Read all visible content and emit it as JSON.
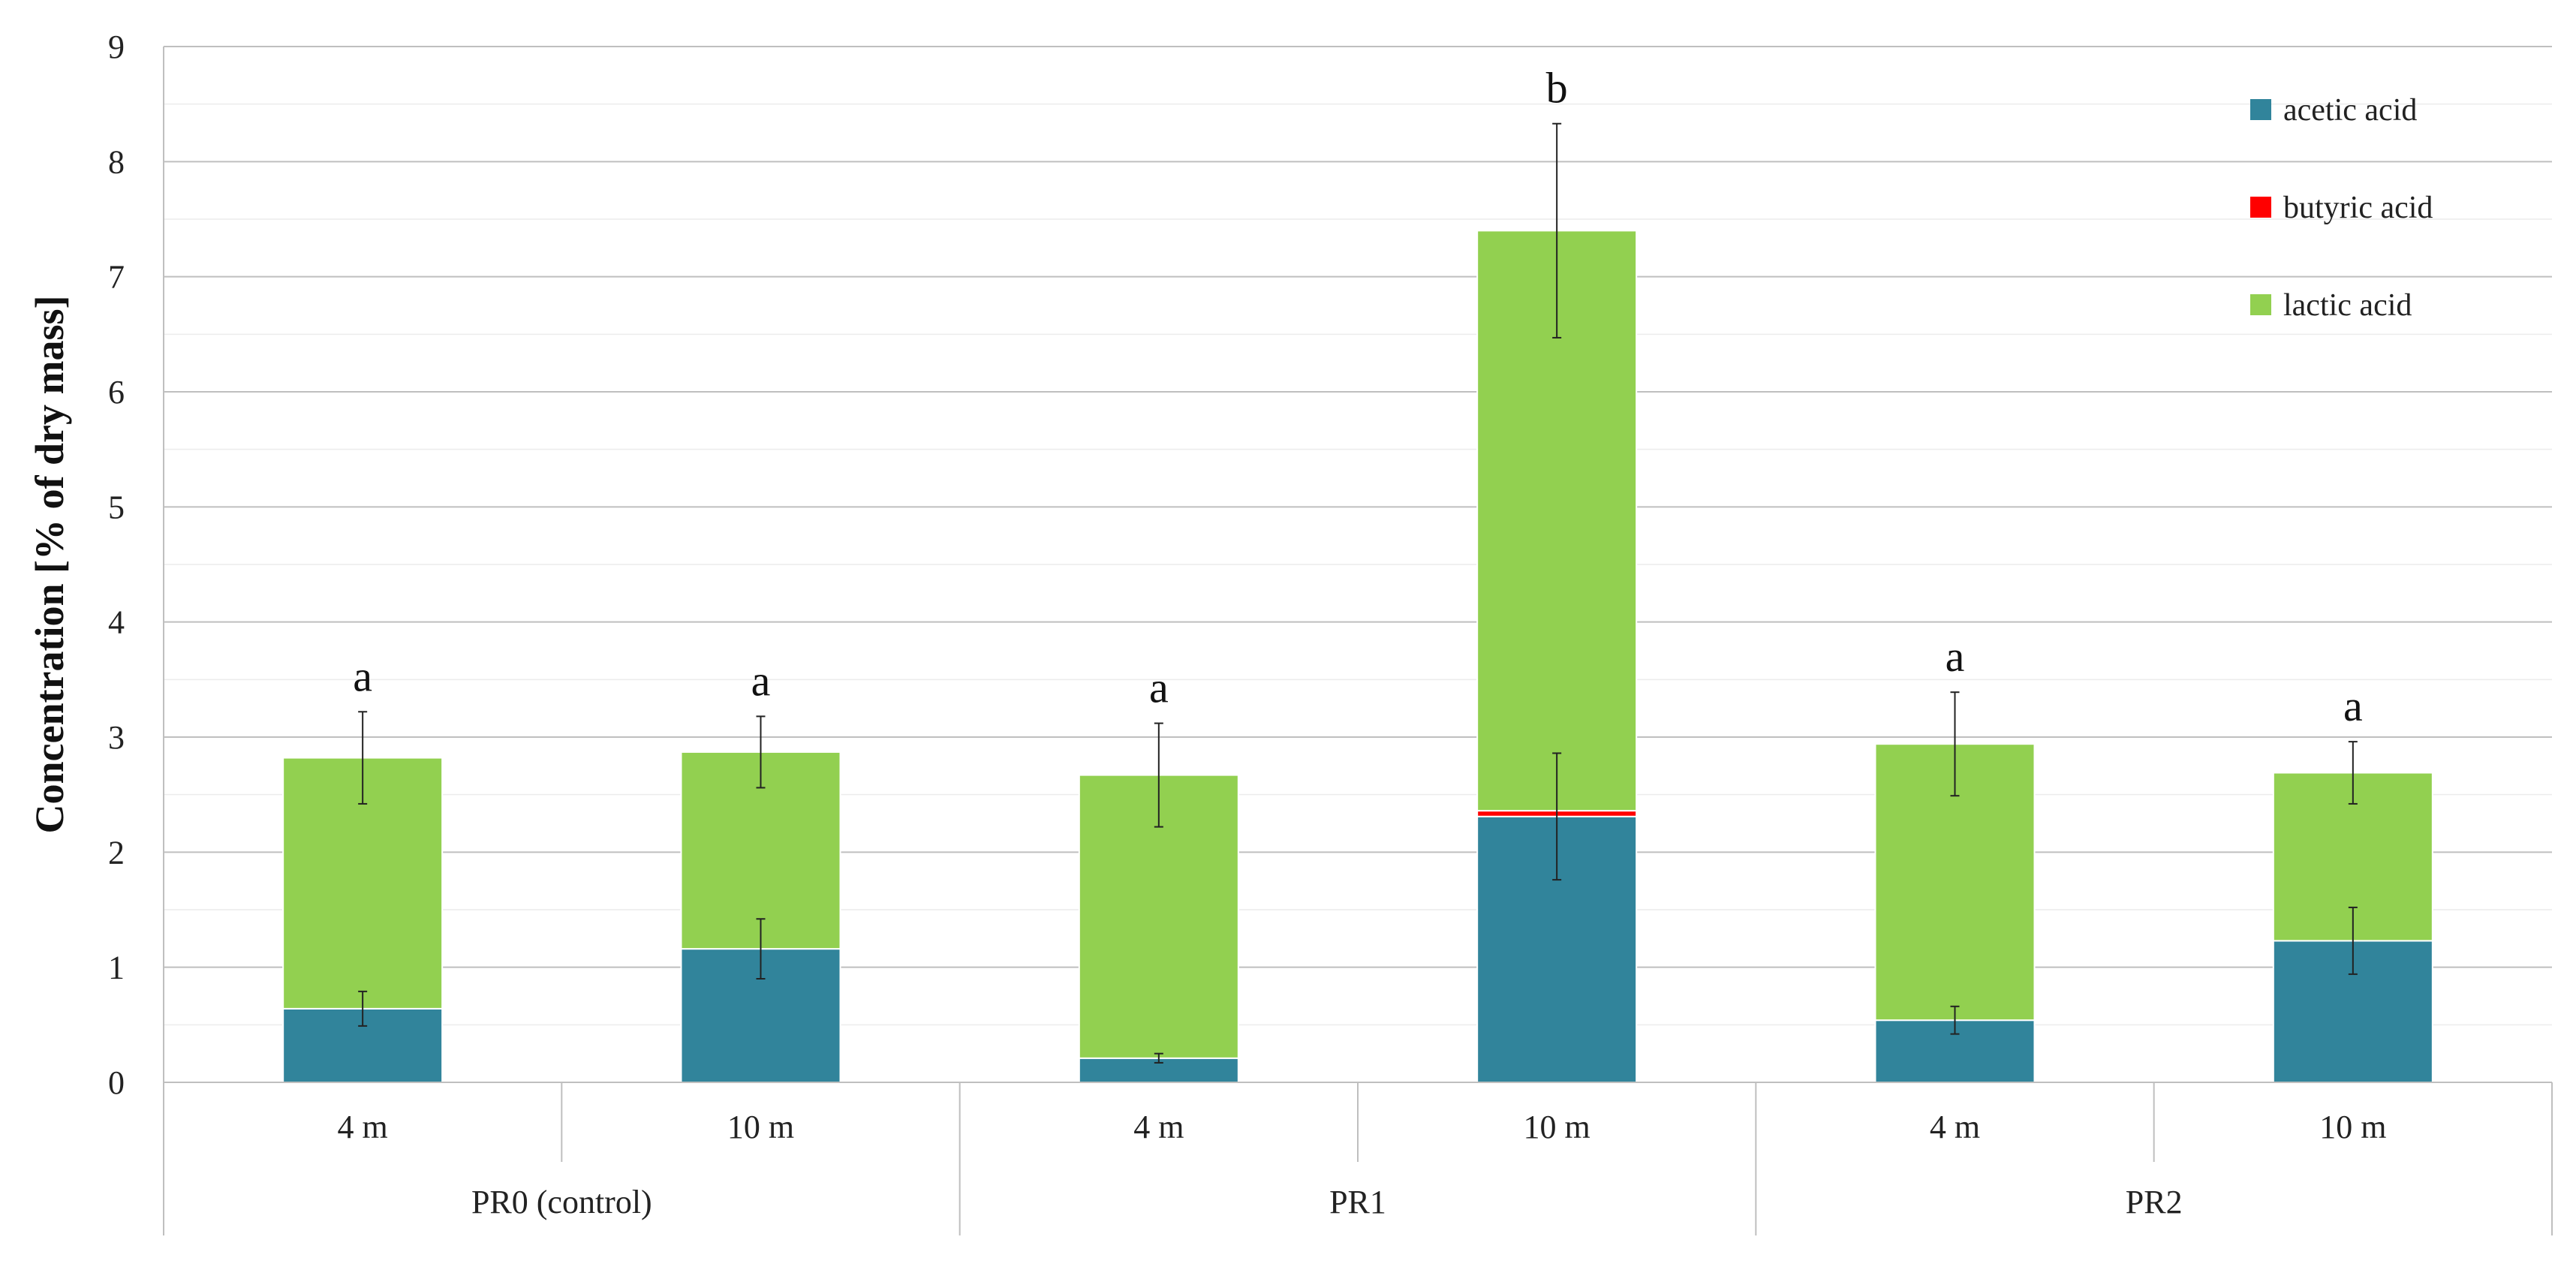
{
  "chart_data": {
    "type": "bar",
    "stacked": true,
    "ylabel": "Concentration [% of dry mass]",
    "xlabel": "",
    "ylim": [
      0,
      9
    ],
    "yticks": [
      0,
      1,
      2,
      3,
      4,
      5,
      6,
      7,
      8,
      9
    ],
    "grid": true,
    "legend_position": "top-right",
    "categories": [
      "4 m",
      "10 m",
      "4 m",
      "10 m",
      "4 m",
      "10 m"
    ],
    "groups": [
      {
        "label": "PR0 (control)",
        "span": [
          0,
          1
        ]
      },
      {
        "label": "PR1",
        "span": [
          2,
          3
        ]
      },
      {
        "label": "PR2",
        "span": [
          4,
          5
        ]
      }
    ],
    "series": [
      {
        "name": "acetic acid",
        "color": "#31849b",
        "values": [
          0.64,
          1.16,
          0.21,
          2.31,
          0.54,
          1.23
        ],
        "errors": [
          0.15,
          0.26,
          0.04,
          0.55,
          0.12,
          0.29
        ]
      },
      {
        "name": "butyric acid",
        "color": "#ff0000",
        "values": [
          0,
          0,
          0,
          0.05,
          0,
          0
        ],
        "errors": [
          0,
          0,
          0,
          0,
          0,
          0
        ]
      },
      {
        "name": "lactic acid",
        "color": "#92d050",
        "values": [
          2.18,
          1.71,
          2.46,
          5.04,
          2.4,
          1.46
        ],
        "errors": [
          0.4,
          0.31,
          0.45,
          0.93,
          0.45,
          0.27
        ]
      }
    ],
    "significance": [
      "a",
      "a",
      "a",
      "b",
      "a",
      "a"
    ]
  }
}
